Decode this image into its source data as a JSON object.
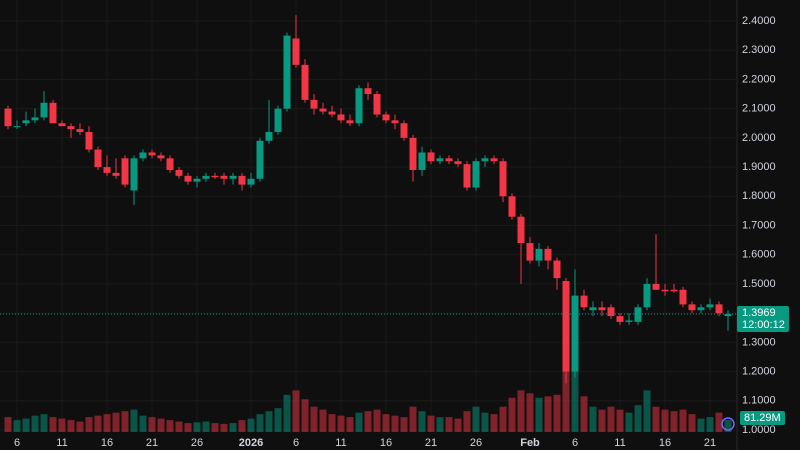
{
  "chart_data": {
    "type": "candlestick",
    "ohlc": [
      [
        2.1,
        2.11,
        2.03,
        2.04
      ],
      [
        2.04,
        2.06,
        2.03,
        2.04
      ],
      [
        2.05,
        2.09,
        2.04,
        2.06
      ],
      [
        2.06,
        2.1,
        2.05,
        2.07
      ],
      [
        2.07,
        2.16,
        2.06,
        2.12
      ],
      [
        2.12,
        2.13,
        2.05,
        2.05
      ],
      [
        2.05,
        2.06,
        2.04,
        2.04
      ],
      [
        2.04,
        2.05,
        2.0,
        2.03
      ],
      [
        2.03,
        2.05,
        2.01,
        2.02
      ],
      [
        2.02,
        2.04,
        1.95,
        1.96
      ],
      [
        1.96,
        1.97,
        1.89,
        1.9
      ],
      [
        1.9,
        1.94,
        1.87,
        1.88
      ],
      [
        1.88,
        1.93,
        1.86,
        1.87
      ],
      [
        1.93,
        1.94,
        1.83,
        1.84
      ],
      [
        1.82,
        1.94,
        1.77,
        1.93
      ],
      [
        1.93,
        1.96,
        1.92,
        1.95
      ],
      [
        1.95,
        1.96,
        1.93,
        1.94
      ],
      [
        1.94,
        1.95,
        1.92,
        1.93
      ],
      [
        1.93,
        1.94,
        1.88,
        1.89
      ],
      [
        1.89,
        1.9,
        1.86,
        1.87
      ],
      [
        1.87,
        1.88,
        1.84,
        1.85
      ],
      [
        1.85,
        1.87,
        1.83,
        1.86
      ],
      [
        1.86,
        1.88,
        1.85,
        1.87
      ],
      [
        1.87,
        1.88,
        1.86,
        1.865
      ],
      [
        1.87,
        1.88,
        1.84,
        1.86
      ],
      [
        1.86,
        1.88,
        1.84,
        1.87
      ],
      [
        1.87,
        1.88,
        1.82,
        1.84
      ],
      [
        1.84,
        1.88,
        1.83,
        1.86
      ],
      [
        1.86,
        2.0,
        1.85,
        1.99
      ],
      [
        1.99,
        2.13,
        1.98,
        2.02
      ],
      [
        2.02,
        2.11,
        2.01,
        2.1
      ],
      [
        2.1,
        2.36,
        2.09,
        2.35
      ],
      [
        2.34,
        2.42,
        2.24,
        2.25
      ],
      [
        2.25,
        2.27,
        2.12,
        2.13
      ],
      [
        2.13,
        2.15,
        2.08,
        2.1
      ],
      [
        2.1,
        2.12,
        2.08,
        2.09
      ],
      [
        2.09,
        2.11,
        2.07,
        2.08
      ],
      [
        2.08,
        2.1,
        2.05,
        2.06
      ],
      [
        2.06,
        2.08,
        2.04,
        2.05
      ],
      [
        2.05,
        2.18,
        2.04,
        2.17
      ],
      [
        2.17,
        2.19,
        2.13,
        2.15
      ],
      [
        2.15,
        2.16,
        2.07,
        2.08
      ],
      [
        2.08,
        2.09,
        2.05,
        2.06
      ],
      [
        2.06,
        2.08,
        2.03,
        2.05
      ],
      [
        2.05,
        2.06,
        1.99,
        2.0
      ],
      [
        2.0,
        2.01,
        1.85,
        1.89
      ],
      [
        1.89,
        1.97,
        1.87,
        1.95
      ],
      [
        1.95,
        1.96,
        1.91,
        1.92
      ],
      [
        1.92,
        1.94,
        1.91,
        1.93
      ],
      [
        1.93,
        1.94,
        1.91,
        1.92
      ],
      [
        1.92,
        1.93,
        1.9,
        1.91
      ],
      [
        1.91,
        1.92,
        1.82,
        1.83
      ],
      [
        1.83,
        1.93,
        1.82,
        1.92
      ],
      [
        1.92,
        1.94,
        1.9,
        1.93
      ],
      [
        1.93,
        1.94,
        1.91,
        1.92
      ],
      [
        1.92,
        1.93,
        1.78,
        1.8
      ],
      [
        1.8,
        1.81,
        1.72,
        1.73
      ],
      [
        1.73,
        1.74,
        1.5,
        1.64
      ],
      [
        1.64,
        1.66,
        1.57,
        1.58
      ],
      [
        1.58,
        1.64,
        1.56,
        1.62
      ],
      [
        1.62,
        1.63,
        1.55,
        1.58
      ],
      [
        1.58,
        1.59,
        1.48,
        1.52
      ],
      [
        1.51,
        1.52,
        1.16,
        1.2
      ],
      [
        1.2,
        1.55,
        1.18,
        1.46
      ],
      [
        1.46,
        1.48,
        1.41,
        1.42
      ],
      [
        1.41,
        1.44,
        1.39,
        1.42
      ],
      [
        1.42,
        1.44,
        1.39,
        1.41
      ],
      [
        1.42,
        1.43,
        1.38,
        1.39
      ],
      [
        1.39,
        1.4,
        1.36,
        1.37
      ],
      [
        1.37,
        1.4,
        1.36,
        1.375
      ],
      [
        1.37,
        1.43,
        1.36,
        1.42
      ],
      [
        1.42,
        1.52,
        1.41,
        1.5
      ],
      [
        1.5,
        1.67,
        1.48,
        1.48
      ],
      [
        1.48,
        1.5,
        1.46,
        1.475
      ],
      [
        1.48,
        1.5,
        1.47,
        1.475
      ],
      [
        1.48,
        1.49,
        1.42,
        1.43
      ],
      [
        1.43,
        1.44,
        1.4,
        1.41
      ],
      [
        1.41,
        1.43,
        1.4,
        1.42
      ],
      [
        1.42,
        1.45,
        1.41,
        1.43
      ],
      [
        1.43,
        1.44,
        1.39,
        1.4
      ],
      [
        1.39,
        1.41,
        1.34,
        1.3969
      ]
    ],
    "volume": {
      "values": [
        100,
        80,
        90,
        110,
        120,
        100,
        90,
        80,
        70,
        100,
        110,
        120,
        130,
        140,
        150,
        110,
        100,
        90,
        80,
        70,
        60,
        65,
        70,
        60,
        55,
        60,
        80,
        90,
        120,
        140,
        160,
        250,
        280,
        220,
        170,
        150,
        120,
        110,
        100,
        130,
        140,
        150,
        120,
        110,
        100,
        170,
        140,
        110,
        100,
        100,
        90,
        140,
        170,
        130,
        120,
        170,
        230,
        280,
        260,
        230,
        240,
        250,
        420,
        430,
        240,
        170,
        150,
        170,
        150,
        130,
        180,
        280,
        170,
        150,
        140,
        150,
        120,
        90,
        100,
        130,
        81.29
      ],
      "last_label": "81.29M"
    },
    "up_color": "#089981",
    "down_color": "#f23645",
    "ylim": [
      1.0,
      2.4
    ],
    "yticks": [
      {
        "value": 2.4,
        "label": "2.4000"
      },
      {
        "value": 2.3,
        "label": "2.3000"
      },
      {
        "value": 2.2,
        "label": "2.2000"
      },
      {
        "value": 2.1,
        "label": "2.1000"
      },
      {
        "value": 2.0,
        "label": "2.0000"
      },
      {
        "value": 1.9,
        "label": "1.9000"
      },
      {
        "value": 1.8,
        "label": "1.8000"
      },
      {
        "value": 1.7,
        "label": "1.7000"
      },
      {
        "value": 1.6,
        "label": "1.6000"
      },
      {
        "value": 1.5,
        "label": "1.5000"
      },
      {
        "value": 1.4,
        "label": "1.4000"
      },
      {
        "value": 1.3,
        "label": "1.3000"
      },
      {
        "value": 1.2,
        "label": "1.2000"
      },
      {
        "value": 1.1,
        "label": "1.1000"
      },
      {
        "value": 1.0,
        "label": "1.0000"
      }
    ],
    "xticks": [
      {
        "value": 1,
        "label": "6"
      },
      {
        "value": 6,
        "label": "11"
      },
      {
        "value": 11,
        "label": "16"
      },
      {
        "value": 16,
        "label": "21"
      },
      {
        "value": 21,
        "label": "26"
      },
      {
        "value": 27,
        "label": "2026"
      },
      {
        "value": 32,
        "label": "6"
      },
      {
        "value": 37,
        "label": "11"
      },
      {
        "value": 42,
        "label": "16"
      },
      {
        "value": 47,
        "label": "21"
      },
      {
        "value": 52,
        "label": "26"
      },
      {
        "value": 58,
        "label": "Feb"
      },
      {
        "value": 63,
        "label": "6"
      },
      {
        "value": 68,
        "label": "11"
      },
      {
        "value": 73,
        "label": "16"
      },
      {
        "value": 78,
        "label": "21"
      }
    ],
    "current_price": 1.3969,
    "countdown": "12:00:12",
    "grid": true
  }
}
